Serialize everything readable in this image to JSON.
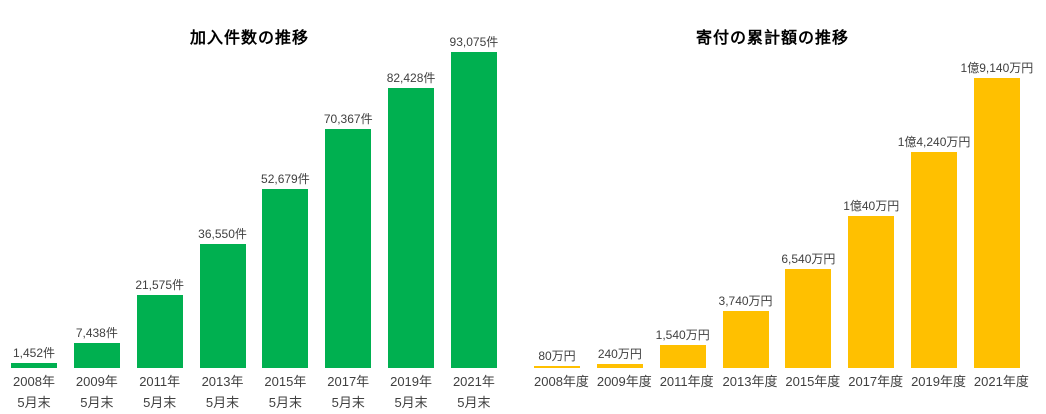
{
  "page": {
    "background_color": "#ffffff",
    "text_color": "#404040",
    "title_color": "#000000"
  },
  "chart_data": [
    {
      "type": "bar",
      "title": "加入件数の推移",
      "bar_color": "#00B050",
      "unit_suffix": "件",
      "categories": [
        [
          "2008年",
          "5月末"
        ],
        [
          "2009年",
          "5月末"
        ],
        [
          "2011年",
          "5月末"
        ],
        [
          "2013年",
          "5月末"
        ],
        [
          "2015年",
          "5月末"
        ],
        [
          "2017年",
          "5月末"
        ],
        [
          "2019年",
          "5月末"
        ],
        [
          "2021年",
          "5月末"
        ]
      ],
      "values": [
        1452,
        7438,
        21575,
        36550,
        52679,
        70367,
        82428,
        93075
      ],
      "value_labels": [
        "1,452件",
        "7,438件",
        "21,575件",
        "36,550件",
        "52,679件",
        "70,367件",
        "82,428件",
        "93,075件"
      ],
      "ylim": [
        0,
        93075
      ],
      "grid": false,
      "legend": "none"
    },
    {
      "type": "bar",
      "title": "寄付の累計額の推移",
      "bar_color": "#FFC000",
      "unit_suffix": "万円",
      "categories": [
        [
          "2008年度"
        ],
        [
          "2009年度"
        ],
        [
          "2011年度"
        ],
        [
          "2013年度"
        ],
        [
          "2015年度"
        ],
        [
          "2017年度"
        ],
        [
          "2019年度"
        ],
        [
          "2021年度"
        ]
      ],
      "values": [
        80,
        240,
        1540,
        3740,
        6540,
        10040,
        14240,
        19140
      ],
      "value_labels": [
        "80万円",
        "240万円",
        "1,540万円",
        "3,740万円",
        "6,540万円",
        "1億40万円",
        "1億4,240万円",
        "1億9,140万円"
      ],
      "ylim": [
        0,
        19140
      ],
      "grid": false,
      "legend": "none"
    }
  ]
}
